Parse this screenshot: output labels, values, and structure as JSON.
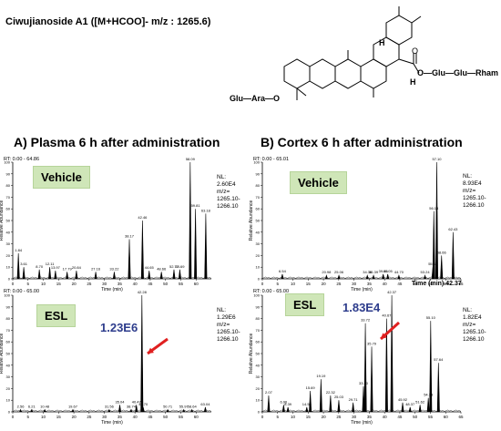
{
  "title": "Ciwujianoside A1 ([M+HCOO]- m/z : 1265.6)",
  "structure": {
    "chain_left": "Glu—Ara—O",
    "chain_right": "O—Glu—Glu—Rham",
    "carbonyl": "O",
    "H_upper": "H",
    "H_lower": "H"
  },
  "panels": {
    "A": {
      "title": "A) Plasma 6 h after administration",
      "vehicle": {
        "label": "Vehicle",
        "rt": "RT: 0.00 - 64.86",
        "nl": "NL:\n2.60E4\nm/z=\n1265.10-\n1266.10"
      },
      "esl": {
        "label": "ESL",
        "rt": "RT: 0.00 - 65.00",
        "nl": "NL:\n1.29E6\nm/z=\n1265.10-\n1266.10",
        "annotation": "1.23E6"
      }
    },
    "B": {
      "title": "B) Cortex 6 h after administration",
      "vehicle": {
        "label": "Vehicle",
        "rt": "RT: 0.00 - 65.01",
        "nl": "NL:\n8.93E4\nm/z=\n1265.10-\n1266.10",
        "time_peak": "Time (min) 42.37"
      },
      "esl": {
        "label": "ESL",
        "rt": "RT: 0.00 - 65.00",
        "nl": "NL:\n1.82E4\nm/z=\n1265.10-\n1266.10",
        "annotation": "1.83E4"
      }
    }
  },
  "colors": {
    "arrow": "#e02020",
    "box": "#cfe6b8",
    "annotation": "#2d3c8c"
  },
  "chart_data": [
    {
      "type": "line",
      "id": "A_vehicle",
      "xlabel": "Time (min)",
      "ylabel": "Relative Abundance",
      "xlim": [
        0,
        65
      ],
      "ylim": [
        0,
        100
      ],
      "xticks": [
        0,
        5,
        10,
        15,
        20,
        25,
        30,
        35,
        40,
        45,
        50,
        55,
        60
      ],
      "yticks": [
        0,
        10,
        20,
        30,
        40,
        50,
        60,
        70,
        80,
        90,
        100
      ],
      "peaks": [
        [
          1.84,
          22
        ],
        [
          3.61,
          10
        ],
        [
          8.7,
          8
        ],
        [
          12.11,
          10
        ],
        [
          13.97,
          7
        ],
        [
          17.79,
          6
        ],
        [
          20.84,
          7
        ],
        [
          27.16,
          6
        ],
        [
          33.22,
          6
        ],
        [
          38.17,
          34
        ],
        [
          42.46,
          50
        ],
        [
          44.65,
          7
        ],
        [
          48.66,
          6
        ],
        [
          52.77,
          8
        ],
        [
          54.69,
          8
        ],
        [
          58.09,
          100
        ],
        [
          59.81,
          60
        ],
        [
          63.18,
          56
        ]
      ]
    },
    {
      "type": "line",
      "id": "A_esl",
      "xlabel": "Time (min)",
      "ylabel": "Relative Abundance",
      "xlim": [
        0,
        65
      ],
      "ylim": [
        0,
        100
      ],
      "xticks": [
        0,
        5,
        10,
        15,
        20,
        25,
        30,
        35,
        40,
        45,
        50,
        55,
        60
      ],
      "yticks": [
        0,
        10,
        20,
        30,
        40,
        50,
        60,
        70,
        80,
        90,
        100
      ],
      "peaks": [
        [
          2.56,
          2
        ],
        [
          6.21,
          2
        ],
        [
          10.48,
          2
        ],
        [
          19.67,
          2
        ],
        [
          31.56,
          2
        ],
        [
          35.04,
          6
        ],
        [
          38.74,
          2
        ],
        [
          40.47,
          6
        ],
        [
          42.28,
          100
        ],
        [
          42.7,
          4
        ],
        [
          50.71,
          2
        ],
        [
          55.97,
          2
        ],
        [
          58.64,
          2
        ],
        [
          63.04,
          4
        ]
      ]
    },
    {
      "type": "line",
      "id": "B_vehicle",
      "xlabel": "Time (min)",
      "ylabel": "Relative Abundance",
      "xlim": [
        0,
        65
      ],
      "ylim": [
        0,
        100
      ],
      "xticks": [
        0,
        5,
        10,
        15,
        20,
        25,
        30,
        35,
        40,
        45,
        50,
        55,
        60,
        65
      ],
      "yticks": [
        0,
        10,
        20,
        30,
        40,
        50,
        60,
        70,
        80,
        90,
        100
      ],
      "peaks": [
        [
          6.54,
          4
        ],
        [
          20.98,
          3
        ],
        [
          25.06,
          3
        ],
        [
          34.36,
          3
        ],
        [
          36.39,
          3
        ],
        [
          39.56,
          4
        ],
        [
          41.05,
          4
        ],
        [
          44.7,
          3
        ],
        [
          53.24,
          3
        ],
        [
          55.82,
          10
        ],
        [
          56.13,
          58
        ],
        [
          58.66,
          20
        ],
        [
          62.43,
          40
        ],
        [
          57.1,
          100
        ]
      ]
    },
    {
      "type": "line",
      "id": "B_esl",
      "xlabel": "Time (min)",
      "ylabel": "Relative Abundance",
      "xlim": [
        0,
        65
      ],
      "ylim": [
        0,
        100
      ],
      "xticks": [
        0,
        5,
        10,
        15,
        20,
        25,
        30,
        35,
        40,
        45,
        50,
        55,
        60,
        65
      ],
      "yticks": [
        0,
        10,
        20,
        30,
        40,
        50,
        60,
        70,
        80,
        90,
        100
      ],
      "peaks": [
        [
          2.07,
          14
        ],
        [
          6.96,
          6
        ],
        [
          8.39,
          4
        ],
        [
          14.55,
          4
        ],
        [
          15.69,
          18
        ],
        [
          19.19,
          28
        ],
        [
          22.32,
          14
        ],
        [
          25.03,
          10
        ],
        [
          29.71,
          8
        ],
        [
          33.1,
          22
        ],
        [
          33.72,
          76
        ],
        [
          35.79,
          56
        ],
        [
          40.67,
          80
        ],
        [
          42.37,
          100
        ],
        [
          45.92,
          8
        ],
        [
          48.37,
          4
        ],
        [
          51.62,
          6
        ],
        [
          54.33,
          12
        ],
        [
          55.1,
          78
        ],
        [
          57.64,
          42
        ]
      ]
    }
  ]
}
